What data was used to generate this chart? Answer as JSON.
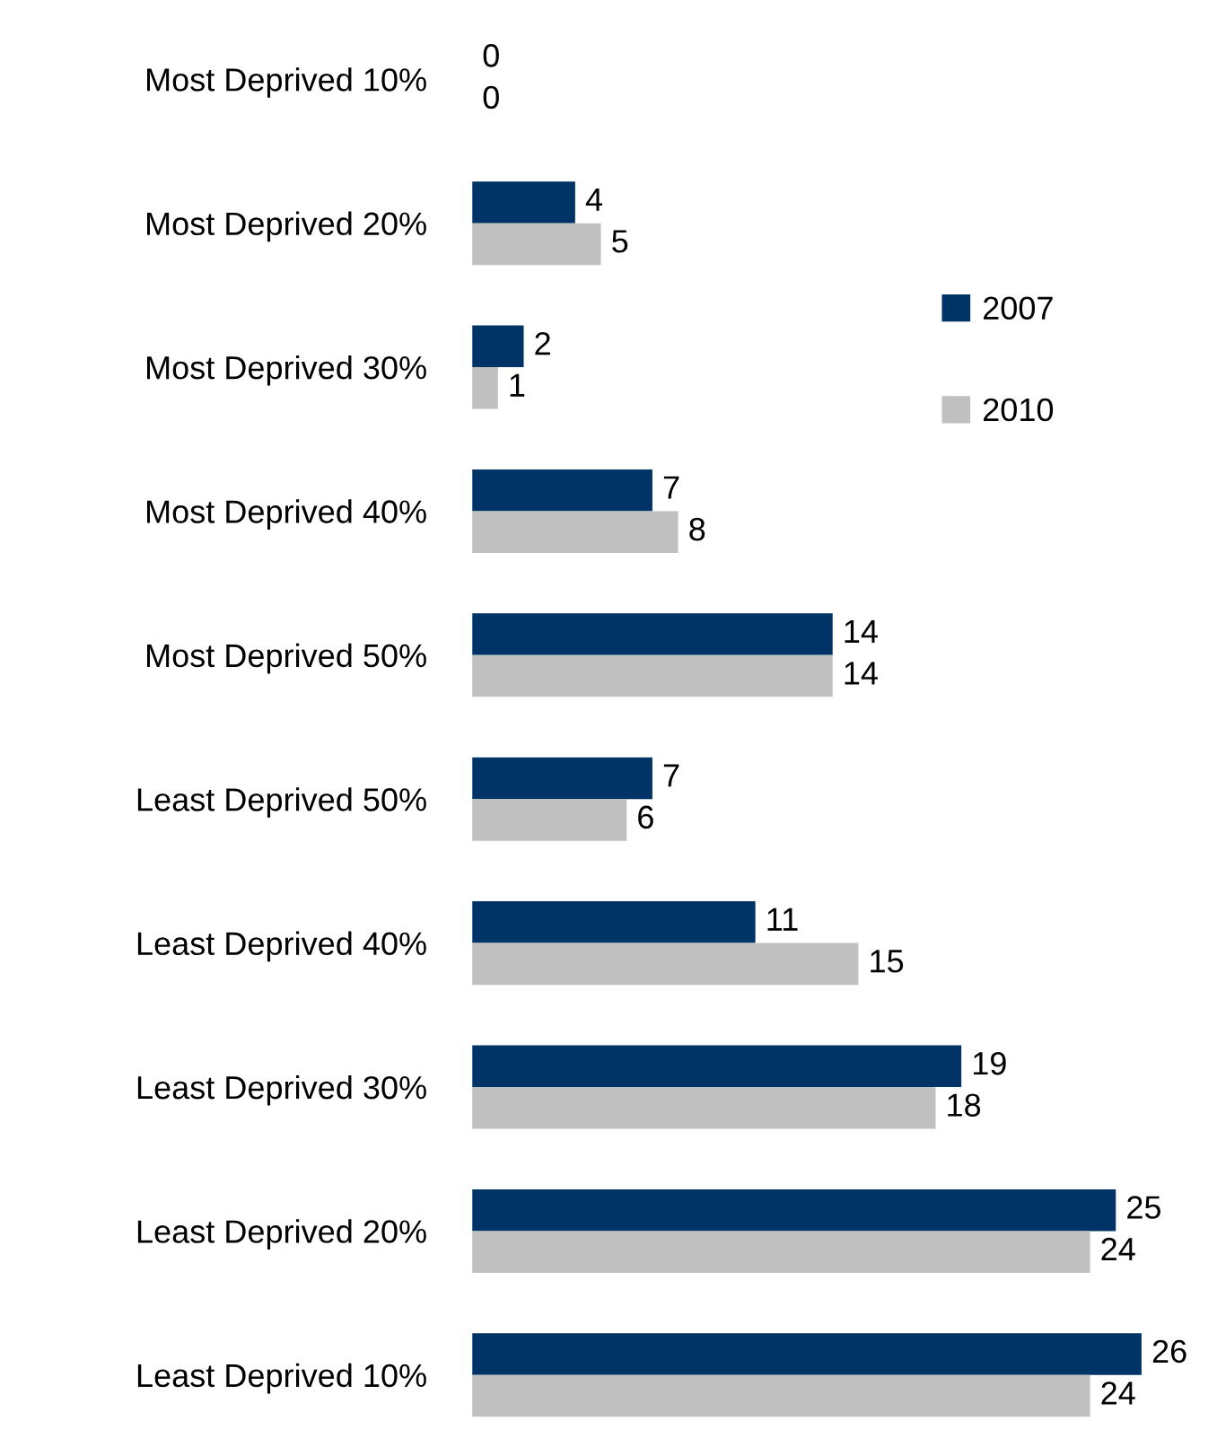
{
  "chart_data": {
    "type": "bar",
    "orientation": "horizontal",
    "data_labels": true,
    "legend": "right",
    "grid": false,
    "categories": [
      "Most Deprived 10%",
      "Most Deprived 20%",
      "Most Deprived 30%",
      "Most Deprived 40%",
      "Most Deprived 50%",
      "Least Deprived 50%",
      "Least Deprived 40%",
      "Least Deprived 30%",
      "Least Deprived 20%",
      "Least Deprived 10%"
    ],
    "series": [
      {
        "name": "2007",
        "color": "#003366",
        "values": [
          0,
          4,
          2,
          7,
          14,
          7,
          11,
          19,
          25,
          26
        ]
      },
      {
        "name": "2010",
        "color": "#c0c0c0",
        "values": [
          0,
          5,
          1,
          8,
          14,
          6,
          15,
          18,
          24,
          24
        ]
      }
    ]
  }
}
